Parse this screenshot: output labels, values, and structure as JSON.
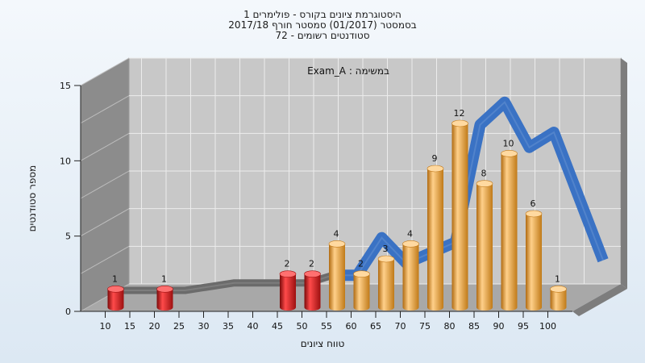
{
  "chart_data": {
    "type": "bar",
    "title": [
      "היסטוגרמת ציונים בקורס - פולימרים 1",
      "בסמסטר (01/2017) סמסטר חורף 2017/18",
      "סטודנטים רשומים - 72"
    ],
    "caption": "Exam_A : במשימה",
    "xlabel": "טווח ציונים",
    "ylabel": "מספר סטודנטים",
    "ylim": [
      0,
      15
    ],
    "yticks": [
      0,
      5,
      10,
      15
    ],
    "xticks": [
      10,
      15,
      20,
      25,
      30,
      35,
      40,
      45,
      50,
      55,
      60,
      65,
      70,
      75,
      80,
      85,
      90,
      95,
      100
    ],
    "bars": [
      {
        "x": 10,
        "value": 1,
        "group": "fail"
      },
      {
        "x": 20,
        "value": 1,
        "group": "fail"
      },
      {
        "x": 45,
        "value": 2,
        "group": "fail"
      },
      {
        "x": 50,
        "value": 2,
        "group": "fail"
      },
      {
        "x": 55,
        "value": 4,
        "group": "pass"
      },
      {
        "x": 60,
        "value": 2,
        "group": "pass"
      },
      {
        "x": 65,
        "value": 3,
        "group": "pass"
      },
      {
        "x": 70,
        "value": 4,
        "group": "pass"
      },
      {
        "x": 75,
        "value": 9,
        "group": "pass"
      },
      {
        "x": 80,
        "value": 12,
        "group": "pass"
      },
      {
        "x": 85,
        "value": 8,
        "group": "pass"
      },
      {
        "x": 90,
        "value": 10,
        "group": "pass"
      },
      {
        "x": 95,
        "value": 6,
        "group": "pass"
      },
      {
        "x": 100,
        "value": 1,
        "group": "pass"
      }
    ],
    "curve": [
      {
        "x": 5,
        "y": 0
      },
      {
        "x": 15,
        "y": 0
      },
      {
        "x": 20,
        "y": 0
      },
      {
        "x": 30,
        "y": 0.5
      },
      {
        "x": 45,
        "y": 0.5
      },
      {
        "x": 50,
        "y": 1
      },
      {
        "x": 55,
        "y": 1
      },
      {
        "x": 60,
        "y": 3.5
      },
      {
        "x": 65,
        "y": 1.8
      },
      {
        "x": 70,
        "y": 2.5
      },
      {
        "x": 75,
        "y": 3.2
      },
      {
        "x": 80,
        "y": 11
      },
      {
        "x": 85,
        "y": 12.5
      },
      {
        "x": 90,
        "y": 9.5
      },
      {
        "x": 95,
        "y": 10.5
      },
      {
        "x": 105,
        "y": 2
      }
    ],
    "colors": {
      "fail": "#e02020",
      "pass": "#f0a83c",
      "curve": "#3a72c4",
      "curve_low": "#6b6b6b",
      "wall_left": "#8c8c8c",
      "wall_back": "#c8c8c8",
      "floor": "#a8a8a8"
    },
    "grid": true
  }
}
